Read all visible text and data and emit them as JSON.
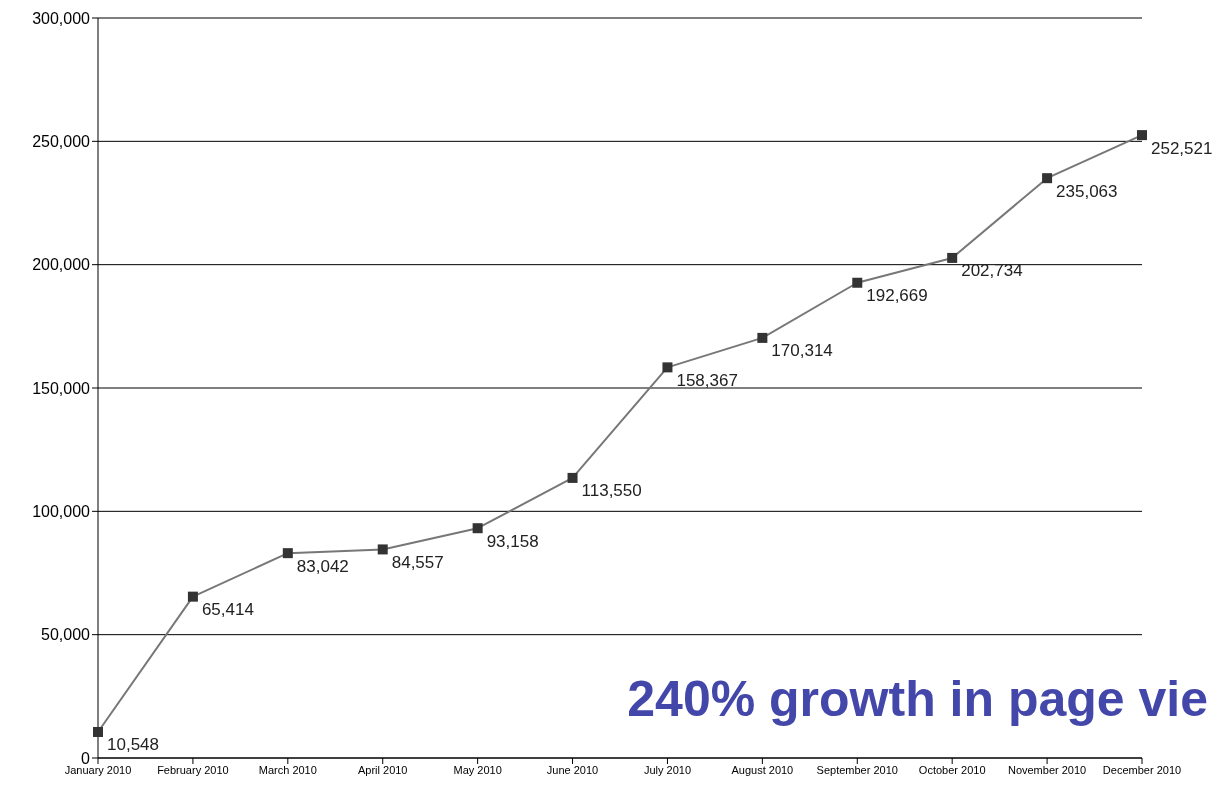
{
  "chart_data": {
    "type": "line",
    "categories": [
      "January 2010",
      "February 2010",
      "March 2010",
      "April 2010",
      "May 2010",
      "June 2010",
      "July 2010",
      "August 2010",
      "September 2010",
      "October 2010",
      "November 2010",
      "December 2010"
    ],
    "series": [
      {
        "color": "#777777",
        "values": [
          10548,
          65414,
          83042,
          84557,
          93158,
          113550,
          158367,
          170314,
          192669,
          202734,
          235063,
          252521
        ]
      }
    ],
    "ylim": [
      0,
      300000
    ],
    "yticks": [
      {
        "value": 0,
        "label": "0"
      },
      {
        "value": 50000,
        "label": "50,000"
      },
      {
        "value": 100000,
        "label": "100,000"
      },
      {
        "value": 150000,
        "label": "150,000"
      },
      {
        "value": 200000,
        "label": "200,000"
      },
      {
        "value": 250000,
        "label": "250,000"
      },
      {
        "value": 300000,
        "label": "300,000"
      }
    ],
    "value_labels": [
      "10,548",
      "65,414",
      "83,042",
      "84,557",
      "93,158",
      "113,550",
      "158,367",
      "170,314",
      "192,669",
      "202,734",
      "235,063",
      "252,521"
    ],
    "grid": "y",
    "marker": "square",
    "line_style": "solid",
    "annotations": [
      "240% growth in page vie"
    ]
  }
}
